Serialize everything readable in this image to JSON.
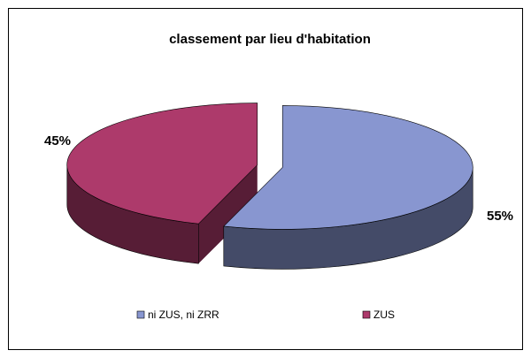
{
  "chart_data": {
    "type": "pie3d",
    "title": "classement par lieu d'habitation",
    "categories": [
      "ni ZUS, ni ZRR",
      "ZUS"
    ],
    "values": [
      55,
      45
    ],
    "value_labels": [
      "55%",
      "45%"
    ],
    "colors": [
      "#8896d0",
      "#ad3a6b"
    ],
    "legend": "bottom"
  }
}
